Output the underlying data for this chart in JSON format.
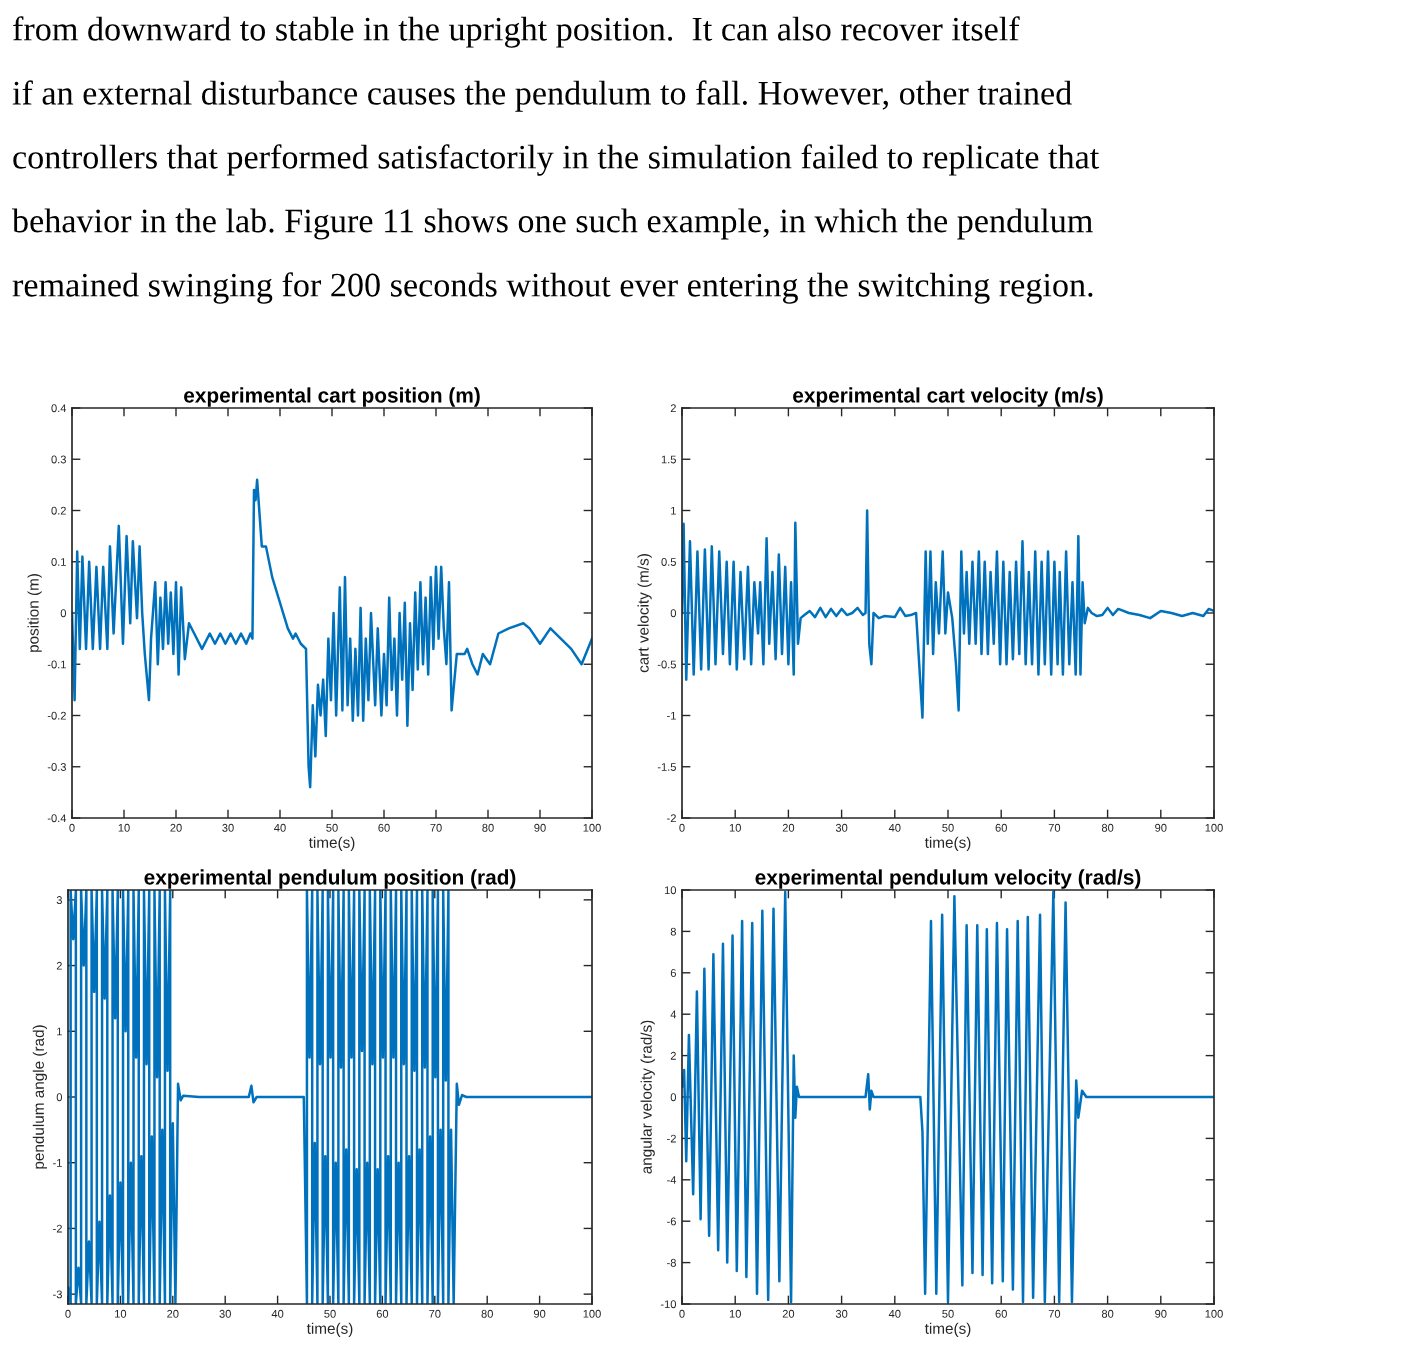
{
  "chart_data": [
    {
      "type": "line",
      "title": "experimental cart position (m)",
      "xlabel": "time(s)",
      "ylabel": "position (m)",
      "annotations": [
        "from downward to stable in the upright position.  It can also recover itself",
        "if an external disturbance causes the pendulum to fall. However, other trained",
        "controllers that performed satisfactorily in the simulation failed to replicate that",
        "behavior in the lab. Figure 11 shows one such example, in which the pendulum",
        "remained swinging for 200 seconds without ever entering the switching region."
      ],
      "xlim": [
        0,
        100
      ],
      "ylim": [
        -0.4,
        0.4
      ],
      "xticks": [
        0,
        10,
        20,
        30,
        40,
        50,
        60,
        70,
        80,
        90,
        100
      ],
      "yticks": [
        -0.4,
        -0.3,
        -0.2,
        -0.1,
        0,
        0.1,
        0.2,
        0.3,
        0.4
      ],
      "series": [
        {
          "color": "#0072bd",
          "x": [
            0,
            0.5,
            1,
            1.5,
            2,
            2.7,
            3.3,
            4,
            4.7,
            5.4,
            6,
            6.8,
            7.3,
            8,
            9,
            9.8,
            10.5,
            11.2,
            11.7,
            12.5,
            13,
            13.5,
            14,
            14.8,
            15.2,
            16,
            16.5,
            17,
            17.5,
            18,
            18.5,
            19,
            19.5,
            20,
            20.5,
            21,
            21.7,
            22.5,
            23.5,
            25,
            26.5,
            27.5,
            28.5,
            29.5,
            30.5,
            31.5,
            32.5,
            33.5,
            34.3,
            34.7,
            35,
            35.3,
            35.6,
            36.5,
            37.3,
            38.5,
            40,
            41.5,
            42.5,
            43,
            44,
            45,
            45.5,
            45.8,
            46.3,
            46.8,
            47.3,
            47.8,
            48.3,
            48.8,
            49.3,
            49.8,
            50.3,
            50.8,
            51.5,
            52,
            52.5,
            53,
            53.5,
            54,
            54.5,
            55,
            55.5,
            56,
            56.5,
            57,
            57.5,
            58.3,
            58.8,
            59.5,
            60,
            60.5,
            61,
            61.5,
            62,
            62.5,
            63,
            63.5,
            64,
            64.5,
            65,
            65.5,
            66,
            66.5,
            67,
            67.5,
            68,
            68.5,
            69,
            69.5,
            70,
            70.5,
            71,
            71.5,
            72,
            72.5,
            73,
            74,
            75.5,
            76,
            77,
            78,
            79,
            80.4,
            82,
            84,
            86.8,
            88,
            90,
            92,
            94,
            96,
            98,
            100
          ],
          "values": [
            0,
            -0.17,
            0.12,
            -0.07,
            0.11,
            -0.07,
            0.1,
            -0.07,
            0.09,
            -0.07,
            0.09,
            -0.07,
            0.13,
            -0.04,
            0.17,
            -0.06,
            0.15,
            -0.02,
            0.14,
            -0.01,
            0.13,
            0,
            -0.08,
            -0.17,
            -0.05,
            0.06,
            -0.1,
            0.03,
            -0.07,
            0.06,
            -0.06,
            0.04,
            -0.08,
            0.06,
            -0.12,
            0.05,
            -0.09,
            -0.02,
            -0.04,
            -0.07,
            -0.04,
            -0.06,
            -0.04,
            -0.06,
            -0.04,
            -0.06,
            -0.04,
            -0.06,
            -0.04,
            -0.05,
            0.24,
            0.22,
            0.26,
            0.13,
            0.13,
            0.07,
            0.02,
            -0.03,
            -0.05,
            -0.04,
            -0.06,
            -0.07,
            -0.3,
            -0.34,
            -0.18,
            -0.28,
            -0.14,
            -0.2,
            -0.13,
            -0.24,
            -0.05,
            -0.17,
            0,
            -0.2,
            0.05,
            -0.19,
            0.07,
            -0.18,
            -0.05,
            -0.21,
            -0.07,
            -0.2,
            0.01,
            -0.21,
            -0.05,
            -0.17,
            0,
            -0.18,
            -0.03,
            -0.2,
            -0.08,
            -0.18,
            0.03,
            -0.15,
            -0.05,
            -0.2,
            0,
            -0.13,
            0.02,
            -0.22,
            -0.02,
            -0.15,
            0.04,
            -0.11,
            0.06,
            -0.1,
            0.03,
            -0.12,
            0.07,
            -0.07,
            0.09,
            -0.05,
            0.09,
            -0.03,
            -0.1,
            0.06,
            -0.19,
            -0.08,
            -0.08,
            -0.07,
            -0.1,
            -0.12,
            -0.08,
            -0.1,
            -0.04,
            -0.03,
            -0.02,
            -0.03,
            -0.06,
            -0.03,
            -0.05,
            -0.07,
            -0.1,
            -0.05
          ]
        }
      ]
    },
    {
      "type": "line",
      "title": "experimental cart velocity (m/s)",
      "xlabel": "time(s)",
      "ylabel": "cart velocity (m/s)",
      "xlim": [
        0,
        100
      ],
      "ylim": [
        -2,
        2
      ],
      "xticks": [
        0,
        10,
        20,
        30,
        40,
        50,
        60,
        70,
        80,
        90,
        100
      ],
      "yticks": [
        -2,
        -1.5,
        -1,
        -0.5,
        0,
        0.5,
        1,
        1.5,
        2
      ],
      "series": [
        {
          "color": "#0072bd",
          "x": [
            0,
            0.3,
            0.8,
            1.5,
            2.2,
            2.9,
            3.6,
            4.3,
            5,
            5.6,
            6.3,
            7,
            7.7,
            8.4,
            9,
            9.7,
            10.3,
            11,
            11.7,
            12.4,
            13,
            13.6,
            14.3,
            14.7,
            15.3,
            15.9,
            16.4,
            17,
            17.6,
            18.2,
            18.8,
            19.4,
            20,
            20.5,
            21,
            21.3,
            21.8,
            22.3,
            23,
            24,
            25,
            26,
            27,
            28,
            29,
            30,
            31,
            32,
            33,
            34,
            34.5,
            34.8,
            35.2,
            35.6,
            36,
            37,
            38,
            40,
            41,
            42,
            43,
            44,
            45.2,
            45.8,
            46.2,
            46.7,
            47.2,
            47.7,
            48.3,
            49,
            49.5,
            50,
            50.8,
            51.5,
            52,
            52.5,
            53,
            53.5,
            54,
            54.6,
            55.2,
            55.8,
            56.3,
            56.9,
            57.5,
            58,
            58.6,
            59.2,
            59.8,
            60.4,
            61,
            61.6,
            62.2,
            62.8,
            63.4,
            64,
            64.6,
            65.2,
            65.8,
            66.4,
            67,
            67.6,
            68.2,
            68.8,
            69.4,
            70,
            70.6,
            71,
            71.6,
            72.2,
            72.8,
            73.4,
            74,
            74.5,
            74.9,
            75.3,
            75.7,
            76.3,
            77,
            78,
            79,
            80,
            81,
            82,
            84,
            86,
            88,
            90,
            92,
            94,
            96,
            98,
            99,
            100
          ],
          "values": [
            0,
            0.87,
            -0.65,
            0.7,
            -0.6,
            0.6,
            -0.55,
            0.62,
            -0.55,
            0.65,
            -0.5,
            0.6,
            -0.4,
            0.5,
            -0.5,
            0.5,
            -0.55,
            0.4,
            -0.45,
            0.45,
            -0.5,
            0.3,
            -0.2,
            0.3,
            -0.5,
            0.73,
            -0.3,
            0.4,
            -0.45,
            0.57,
            -0.4,
            0.45,
            -0.5,
            0.3,
            -0.6,
            0.88,
            -0.3,
            -0.05,
            -0.02,
            0.02,
            -0.04,
            0.05,
            -0.04,
            0.04,
            -0.03,
            0.04,
            -0.02,
            0,
            0.05,
            -0.02,
            0,
            1,
            -0.3,
            -0.5,
            0,
            -0.05,
            -0.03,
            -0.04,
            0.05,
            -0.03,
            -0.02,
            0,
            -1.02,
            0.6,
            -0.3,
            0.6,
            -0.4,
            0.3,
            -0.2,
            0.6,
            -0.2,
            0.2,
            -0.05,
            -0.5,
            -0.95,
            0.6,
            -0.2,
            0.4,
            -0.3,
            0.5,
            -0.3,
            0.6,
            -0.4,
            0.5,
            -0.4,
            0.4,
            -0.3,
            0.6,
            -0.5,
            0.5,
            -0.5,
            0.4,
            -0.45,
            0.5,
            -0.4,
            0.7,
            -0.5,
            0.4,
            -0.5,
            0.6,
            -0.6,
            0.5,
            -0.5,
            0.6,
            -0.6,
            0.5,
            -0.5,
            0.4,
            -0.6,
            0.6,
            -0.5,
            0.3,
            -0.6,
            0.75,
            -0.6,
            0.3,
            -0.1,
            0.05,
            0,
            -0.03,
            -0.02,
            0.05,
            -0.02,
            0.04,
            0,
            -0.02,
            -0.05,
            0.02,
            0,
            -0.03,
            0,
            -0.03,
            0.04,
            0.02
          ]
        }
      ]
    },
    {
      "type": "line",
      "title": "experimental pendulum position (rad)",
      "xlabel": "time(s)",
      "ylabel": "pendulum angle (rad)",
      "xlim": [
        0,
        100
      ],
      "ylim": [
        -3.15,
        3.15
      ],
      "xticks": [
        0,
        10,
        20,
        30,
        40,
        50,
        60,
        70,
        80,
        90,
        100
      ],
      "yticks": [
        -3,
        -2,
        -1,
        0,
        1,
        2,
        3
      ],
      "series": [
        {
          "color": "#0072bd",
          "x": [
            0,
            0.5,
            0.5,
            1,
            1.5,
            1.5,
            2,
            2.5,
            2.5,
            3,
            3.5,
            3.5,
            4,
            4.5,
            4.5,
            5,
            5.5,
            5.5,
            6,
            6.5,
            6.5,
            7,
            7.5,
            7.5,
            8,
            8.5,
            8.5,
            9,
            9.5,
            9.5,
            10,
            10.5,
            10.5,
            11,
            11.5,
            11.5,
            12,
            12.5,
            12.5,
            13,
            13.5,
            13.5,
            14,
            14.5,
            14.5,
            15,
            15.5,
            15.5,
            16,
            16.5,
            16.5,
            17,
            17.5,
            17.5,
            18,
            18.5,
            18.5,
            19,
            19.5,
            19.5,
            20,
            20.5,
            21,
            21.5,
            22,
            25,
            34.5,
            35,
            35.4,
            36,
            45,
            45.6,
            45.6,
            46.1,
            46.6,
            46.6,
            47.1,
            47.6,
            47.6,
            48.1,
            48.6,
            48.6,
            49.1,
            49.6,
            49.6,
            50.1,
            50.6,
            50.6,
            51.1,
            51.6,
            51.6,
            52.1,
            52.6,
            52.6,
            53.1,
            53.6,
            53.6,
            54.1,
            54.6,
            54.6,
            55.1,
            55.6,
            55.6,
            56.1,
            56.6,
            56.6,
            57.1,
            57.6,
            57.6,
            58.1,
            58.6,
            58.6,
            59.1,
            59.6,
            59.6,
            60.1,
            60.6,
            60.6,
            61.1,
            61.6,
            61.6,
            62.1,
            62.6,
            62.6,
            63.1,
            63.6,
            63.6,
            64.1,
            64.6,
            64.6,
            65.1,
            65.6,
            65.6,
            66.1,
            66.6,
            66.6,
            67.1,
            67.6,
            67.6,
            68.1,
            68.6,
            68.6,
            69.1,
            69.6,
            69.6,
            70.1,
            70.6,
            70.6,
            71.1,
            71.6,
            71.6,
            72.1,
            72.6,
            72.6,
            73.1,
            73.6,
            74.2,
            74.6,
            75.2,
            76,
            100
          ],
          "values": [
            -2.9,
            -3.14,
            3.14,
            2.4,
            3.14,
            -3.14,
            -2.6,
            -3.14,
            3.14,
            2.0,
            3.14,
            -3.14,
            -2.2,
            -3.14,
            3.14,
            1.6,
            3.14,
            -3.14,
            -1.9,
            -3.14,
            3.14,
            1.5,
            3.14,
            -3.14,
            -1.5,
            -3.14,
            3.14,
            1.2,
            3.14,
            -3.14,
            -1.3,
            -3.14,
            3.14,
            1.0,
            3.14,
            -3.14,
            -1.0,
            -3.14,
            3.14,
            0.6,
            3.14,
            -3.14,
            -0.9,
            -3.14,
            3.14,
            0.5,
            3.14,
            -3.14,
            -0.6,
            -3.14,
            3.14,
            0.3,
            3.14,
            -3.14,
            -0.5,
            -3.14,
            3.14,
            0.4,
            3.14,
            -3.14,
            -0.4,
            -3.14,
            0.2,
            -0.05,
            0.02,
            0,
            0,
            0.17,
            -0.08,
            0,
            0,
            -3.14,
            3.14,
            0.6,
            3.14,
            -3.14,
            -0.7,
            -3.14,
            3.14,
            0.5,
            3.14,
            -3.14,
            -0.9,
            -3.14,
            3.14,
            0.6,
            3.14,
            -3.14,
            -1.0,
            -3.14,
            3.14,
            0.45,
            3.14,
            -3.14,
            -0.8,
            -3.14,
            3.14,
            0.6,
            3.14,
            -3.14,
            -1.1,
            -3.14,
            3.14,
            0.7,
            3.14,
            -3.14,
            -1.0,
            -3.14,
            3.14,
            0.5,
            3.14,
            -3.14,
            -1.1,
            -3.14,
            3.14,
            0.6,
            3.14,
            -3.14,
            -0.9,
            -3.14,
            3.14,
            0.6,
            3.14,
            -3.14,
            -1.0,
            -3.14,
            3.14,
            0.5,
            3.14,
            -3.14,
            -0.9,
            -3.14,
            3.14,
            0.4,
            3.14,
            -3.14,
            -0.8,
            -3.14,
            3.14,
            0.45,
            3.14,
            -3.14,
            -0.6,
            -3.14,
            3.14,
            0.3,
            3.14,
            -3.14,
            -0.5,
            -3.14,
            3.14,
            0.25,
            3.14,
            -3.14,
            -0.5,
            -3.14,
            0.2,
            -0.12,
            0.03,
            0,
            0
          ]
        }
      ]
    },
    {
      "type": "line",
      "title": "experimental pendulum velocity (rad/s)",
      "xlabel": "time(s)",
      "ylabel": "angular velocity (rad/s)",
      "xlim": [
        0,
        100
      ],
      "ylim": [
        -10,
        10
      ],
      "xticks": [
        0,
        10,
        20,
        30,
        40,
        50,
        60,
        70,
        80,
        90,
        100
      ],
      "yticks": [
        -10,
        -8,
        -6,
        -4,
        -2,
        0,
        2,
        4,
        6,
        8,
        10
      ],
      "series": [
        {
          "color": "#0072bd",
          "x": [
            0,
            0.4,
            0.8,
            1.3,
            2.1,
            2.8,
            3.5,
            4.2,
            5.1,
            5.9,
            6.8,
            7.7,
            8.5,
            9.5,
            10.3,
            11.3,
            12.1,
            13.2,
            14.1,
            15.1,
            16.2,
            17.2,
            18.3,
            19.4,
            20.5,
            21,
            21.3,
            21.6,
            22,
            34.5,
            35,
            35.3,
            35.6,
            36,
            44.8,
            45.2,
            45.7,
            46.8,
            47.8,
            48.9,
            50,
            51.2,
            52.7,
            53.5,
            54.6,
            55.5,
            56.5,
            57.3,
            58.3,
            59.2,
            60.3,
            61.1,
            62.2,
            63.1,
            64.1,
            65,
            66,
            67.3,
            68.2,
            69.8,
            70.9,
            72.1,
            73.3,
            74.1,
            74.5,
            75.2,
            76,
            100
          ],
          "values": [
            0.5,
            1.3,
            -3.1,
            3.0,
            -4.7,
            5.1,
            -5.9,
            6.2,
            -6.7,
            6.9,
            -7.4,
            7.4,
            -8.0,
            7.8,
            -8.4,
            8.5,
            -8.7,
            8.4,
            -9.5,
            9.0,
            -9.8,
            9.1,
            -8.9,
            9.9,
            -9.9,
            2.0,
            -1.0,
            0.5,
            0,
            0,
            1.1,
            -0.6,
            0.3,
            0,
            0,
            -1.7,
            -9.5,
            8.5,
            -9.5,
            8.8,
            -9.9,
            9.7,
            -9.1,
            8.3,
            -8.5,
            8.3,
            -8.6,
            8.1,
            -9.0,
            8.4,
            -8.9,
            8.1,
            -9.3,
            8.5,
            -9.9,
            8.7,
            -9.7,
            8.8,
            -9.9,
            9.9,
            -9.9,
            9.4,
            -9.9,
            0.8,
            -1.0,
            0.3,
            0,
            0
          ]
        }
      ]
    }
  ]
}
